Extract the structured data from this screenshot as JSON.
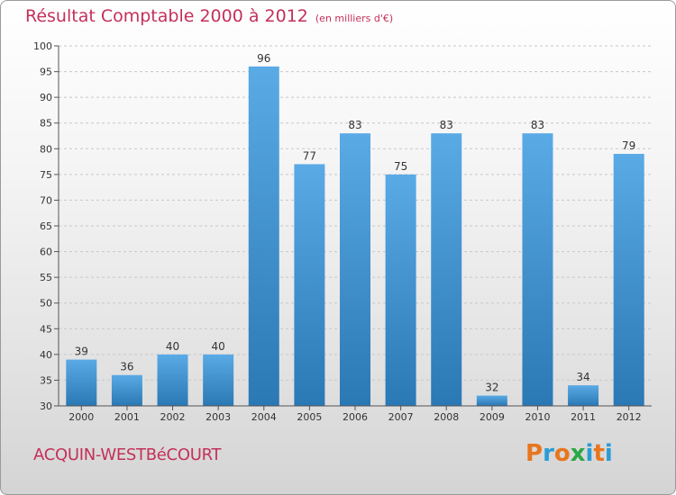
{
  "header": {
    "title": "Résultat Comptable 2000 à 2012",
    "unit": "(en milliers d'€)"
  },
  "footer": {
    "commune": "ACQUIN-WESTBéCOURT",
    "logo": [
      "P",
      "r",
      "o",
      "x",
      "i",
      "t",
      "i"
    ]
  },
  "colors": {
    "title": "#c4305a",
    "bar_top": "#5aaae6",
    "bar_bottom": "#2a78b4",
    "logo": [
      "#e8761e",
      "#2a9cd6",
      "#e8761e",
      "#2aa844",
      "#2a9cd6",
      "#e8761e",
      "#2a9cd6"
    ]
  },
  "chart_data": {
    "type": "bar",
    "title": "Résultat Comptable 2000 à 2012",
    "subtitle": "(en milliers d'€)",
    "xlabel": "",
    "ylabel": "",
    "categories": [
      "2000",
      "2001",
      "2002",
      "2003",
      "2004",
      "2005",
      "2006",
      "2007",
      "2008",
      "2009",
      "2010",
      "2011",
      "2012"
    ],
    "values": [
      39,
      36,
      40,
      40,
      96,
      77,
      83,
      75,
      83,
      32,
      83,
      34,
      79
    ],
    "ylim": [
      30,
      100
    ],
    "yticks": [
      30,
      35,
      40,
      45,
      50,
      55,
      60,
      65,
      70,
      75,
      80,
      85,
      90,
      95,
      100
    ],
    "grid": "horizontal-dashed"
  }
}
